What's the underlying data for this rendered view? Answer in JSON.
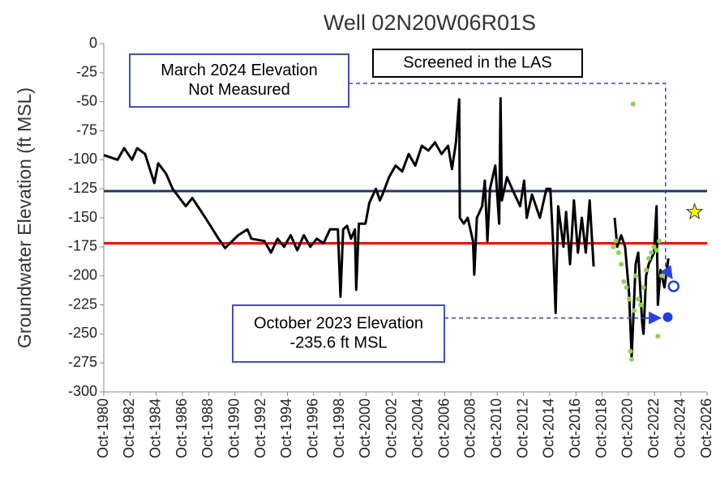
{
  "chart_data": {
    "type": "line",
    "title": "Well 02N20W06R01S",
    "y_label": "Groundwater Elevation (ft MSL)",
    "xlim": [
      1980.75,
      2026.75
    ],
    "xticks": [
      {
        "value": 1980.75,
        "label": "Oct-1980"
      },
      {
        "value": 1982.75,
        "label": "Oct-1982"
      },
      {
        "value": 1984.75,
        "label": "Oct-1984"
      },
      {
        "value": 1986.75,
        "label": "Oct-1986"
      },
      {
        "value": 1988.75,
        "label": "Oct-1988"
      },
      {
        "value": 1990.75,
        "label": "Oct-1990"
      },
      {
        "value": 1992.75,
        "label": "Oct-1992"
      },
      {
        "value": 1994.75,
        "label": "Oct-1994"
      },
      {
        "value": 1996.75,
        "label": "Oct-1996"
      },
      {
        "value": 1998.75,
        "label": "Oct-1998"
      },
      {
        "value": 2000.75,
        "label": "Oct-2000"
      },
      {
        "value": 2002.75,
        "label": "Oct-2002"
      },
      {
        "value": 2004.75,
        "label": "Oct-2004"
      },
      {
        "value": 2006.75,
        "label": "Oct-2006"
      },
      {
        "value": 2008.75,
        "label": "Oct-2008"
      },
      {
        "value": 2010.75,
        "label": "Oct-2010"
      },
      {
        "value": 2012.75,
        "label": "Oct-2012"
      },
      {
        "value": 2014.75,
        "label": "Oct-2014"
      },
      {
        "value": 2016.75,
        "label": "Oct-2016"
      },
      {
        "value": 2018.75,
        "label": "Oct-2018"
      },
      {
        "value": 2020.75,
        "label": "Oct-2020"
      },
      {
        "value": 2022.75,
        "label": "Oct-2022"
      },
      {
        "value": 2024.75,
        "label": "Oct-2024"
      },
      {
        "value": 2026.75,
        "label": "Oct-2026"
      }
    ],
    "ylim": [
      -300,
      0
    ],
    "yticks": [
      0,
      -25,
      -50,
      -75,
      -100,
      -125,
      -150,
      -175,
      -200,
      -225,
      -250,
      -275,
      -300
    ],
    "reference_lines": [
      {
        "value": -127,
        "color": "#1f3864"
      },
      {
        "value": -172,
        "color": "#ff0000"
      }
    ],
    "series": [
      {
        "type": "line",
        "color": "#000000",
        "x": [
          1980.75,
          1981.8,
          1982.3,
          1982.9,
          1983.3,
          1983.9,
          1984.6,
          1984.9,
          1985.5,
          1986,
          1987,
          1987.5,
          1988.5,
          1989.5,
          1990,
          1991,
          1991.7,
          1992,
          1993,
          1993.5,
          1994,
          1994.5,
          1995,
          1995.5,
          1996,
          1996.5,
          1997,
          1997.5,
          1998,
          1998.6,
          1998.8,
          1999,
          1999.3,
          1999.6,
          1999.9,
          2000,
          2000.2,
          2000.7,
          2001,
          2001.5,
          2001.8,
          2002,
          2002.5,
          2003,
          2003.5,
          2004,
          2004.5,
          2005,
          2005.5,
          2006,
          2006.5,
          2007,
          2007.3,
          2007.6,
          2007.8,
          2007.85,
          2007.9,
          2008.2,
          2008.5,
          2008.9,
          2009,
          2009.2,
          2009.6,
          2009.8,
          2010,
          2010.2,
          2010.6,
          2010.9,
          2011,
          2011.1,
          2011.5,
          2012,
          2012.5,
          2012.8,
          2013,
          2013.4,
          2014,
          2014.5,
          2014.8,
          2015,
          2015.2,
          2015.4,
          2015.8,
          2016,
          2016.3,
          2016.6,
          2016.9,
          2017.2,
          2017.5,
          2017.8,
          2018.1,
          null,
          2019.7,
          2019.9,
          2020.2,
          2020.5,
          2020.8,
          2021,
          2021.3,
          2021.5,
          2021.8,
          2021.9,
          2022.1,
          2022.3,
          2022.7,
          2022.9,
          2023,
          2023.2,
          2023.5,
          2023.8
        ],
        "y": [
          -96,
          -100,
          -90,
          -100,
          -90,
          -95,
          -120,
          -103,
          -112,
          -125,
          -140,
          -133,
          -150,
          -168,
          -176,
          -165,
          -160,
          -168,
          -170,
          -180,
          -168,
          -175,
          -165,
          -178,
          -165,
          -175,
          -168,
          -172,
          -160,
          -160,
          -218,
          -160,
          -157,
          -168,
          -160,
          -212,
          -155,
          -155,
          -137,
          -125,
          -135,
          -130,
          -115,
          -105,
          -110,
          -95,
          -105,
          -88,
          -92,
          -85,
          -95,
          -88,
          -108,
          -85,
          -55,
          -48,
          -150,
          -155,
          -150,
          -170,
          -199,
          -150,
          -140,
          -118,
          -170,
          -125,
          -105,
          -155,
          -47,
          -135,
          -115,
          -128,
          -140,
          -118,
          -150,
          -130,
          -150,
          -125,
          -125,
          -170,
          -232,
          -140,
          -175,
          -145,
          -190,
          -135,
          -180,
          -150,
          -180,
          -135,
          -192,
          null,
          -150,
          -175,
          -165,
          -175,
          -215,
          -270,
          -190,
          -180,
          -240,
          -250,
          -200,
          -190,
          -180,
          -140,
          -225,
          -195,
          -210,
          -185
        ]
      },
      {
        "type": "scatter",
        "color": "#92d050",
        "x": [
          2019.6,
          2019.8,
          2020,
          2020.2,
          2020.4,
          2020.6,
          2020.8,
          2020.9,
          2021,
          2021.1,
          2021.2,
          2021.3,
          2021.5,
          2021.7,
          2021.9,
          2022.1,
          2022.3,
          2022.5,
          2022.7,
          2022.9,
          2023,
          2023.1,
          2023.3
        ],
        "y": [
          -175,
          -170,
          -180,
          -190,
          -205,
          -210,
          -220,
          -265,
          -272,
          -52,
          -230,
          -200,
          -220,
          -225,
          -210,
          -195,
          -185,
          -180,
          -175,
          -178,
          -252,
          -170,
          -200
        ]
      }
    ],
    "markers": [
      {
        "x": 2023.75,
        "y": -235.6,
        "color": "#1f3fe0",
        "style": "filled"
      },
      {
        "x": 2024.2,
        "y": -209,
        "color": "#1f3fe0",
        "style": "open"
      },
      {
        "x": 2025.8,
        "y": -145,
        "color": "#ffff00",
        "style": "star"
      }
    ],
    "annotations": [
      {
        "text": [
          "March 2024 Elevation",
          "Not Measured"
        ]
      },
      {
        "text": [
          "Screened in the LAS"
        ]
      },
      {
        "text": [
          "October 2023 Elevation",
          "-235.6  ft MSL"
        ]
      }
    ]
  }
}
